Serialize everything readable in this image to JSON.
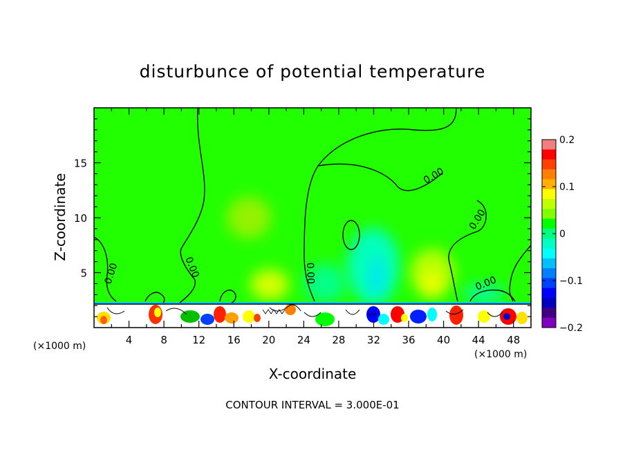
{
  "chart_data": {
    "type": "heatmap",
    "title": "disturbunce of potential temperature",
    "xlabel": "X-coordinate",
    "ylabel": "Z-coordinate",
    "x_unit": "(×1000 m)",
    "y_unit": "(×1000 m)",
    "x_ticks": [
      4,
      8,
      12,
      16,
      20,
      24,
      28,
      32,
      36,
      40,
      44,
      48
    ],
    "y_ticks": [
      5,
      10,
      15
    ],
    "xlim": [
      0,
      50
    ],
    "ylim": [
      0,
      20
    ],
    "footer": "CONTOUR INTERVAL = 3.000E-01",
    "contour_labels": [
      "0.00",
      "0.00",
      "0.00",
      "0.00",
      "0.00",
      "0.00"
    ],
    "colorbar": {
      "min": -0.2,
      "max": 0.2,
      "tick_values": [
        0.2,
        0.1,
        0,
        -0.1,
        -0.2
      ],
      "tick_labels": [
        "0.2",
        "0.1",
        "0",
        "−0.1",
        "−0.2"
      ],
      "colors": [
        "#f08080",
        "#ff0000",
        "#ff4000",
        "#ff8000",
        "#ffb000",
        "#ffff00",
        "#c0ff00",
        "#80ff00",
        "#00ff00",
        "#00ff80",
        "#00ffc0",
        "#00ffff",
        "#00c0ff",
        "#0080ff",
        "#0040ff",
        "#0000ff",
        "#0000c0",
        "#400080",
        "#8000c0"
      ]
    },
    "background_color": "#22ff00",
    "features": [
      {
        "x": 16.0,
        "z": 10.0,
        "value": 0.06
      },
      {
        "x": 20.0,
        "z": 4.0,
        "value": 0.05
      },
      {
        "x": 24.0,
        "z": 2.5,
        "value": -0.02
      },
      {
        "x": 29.0,
        "z": 4.0,
        "value": -0.05
      },
      {
        "x": 32.0,
        "z": 5.0,
        "value": -0.08
      },
      {
        "x": 38.5,
        "z": 4.5,
        "value": 0.08
      },
      {
        "x": 43.0,
        "z": 3.0,
        "value": -0.03
      }
    ]
  }
}
